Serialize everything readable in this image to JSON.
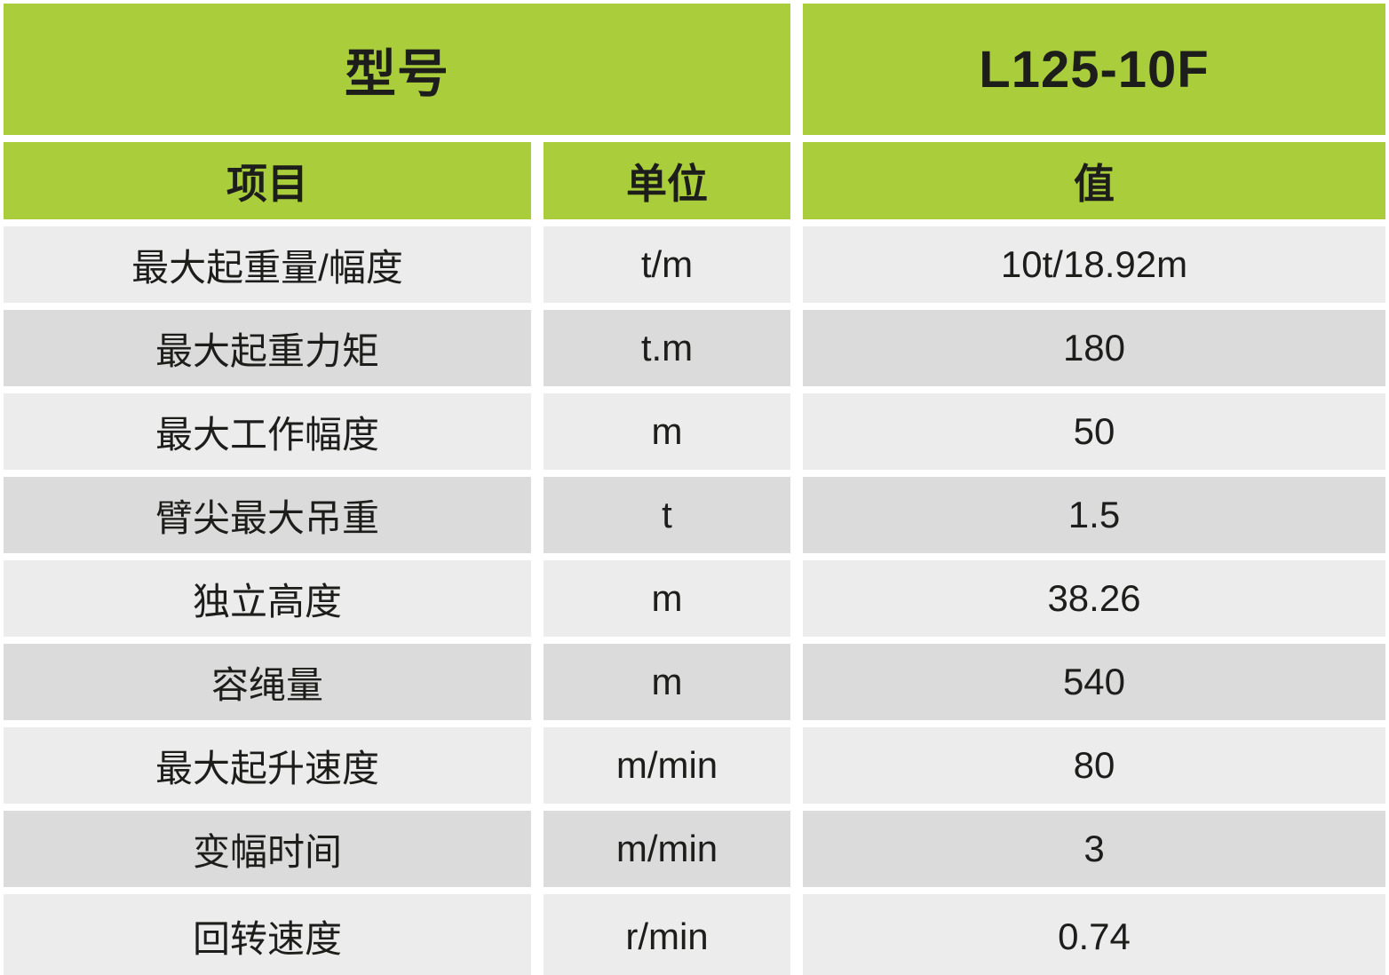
{
  "table": {
    "model_header": "型号",
    "model_value": "L125-10F",
    "columns": {
      "item": "项目",
      "unit": "单位",
      "value": "值"
    },
    "rows": [
      {
        "item": "最大起重量/幅度",
        "unit": "t/m",
        "value": "10t/18.92m"
      },
      {
        "item": "最大起重力矩",
        "unit": "t.m",
        "value": "180"
      },
      {
        "item": "最大工作幅度",
        "unit": "m",
        "value": "50"
      },
      {
        "item": "臂尖最大吊重",
        "unit": "t",
        "value": "1.5"
      },
      {
        "item": "独立高度",
        "unit": "m",
        "value": "38.26"
      },
      {
        "item": "容绳量",
        "unit": "m",
        "value": "540"
      },
      {
        "item": "最大起升速度",
        "unit": "m/min",
        "value": "80"
      },
      {
        "item": "变幅时间",
        "unit": "m/min",
        "value": "3"
      },
      {
        "item": "回转速度",
        "unit": "r/min",
        "value": "0.74"
      }
    ],
    "colors": {
      "header_green": "#a9cd3b",
      "row_light": "#ececec",
      "row_dark": "#dbdbdb",
      "text": "#1d1d1b",
      "gap_white": "#ffffff"
    }
  }
}
